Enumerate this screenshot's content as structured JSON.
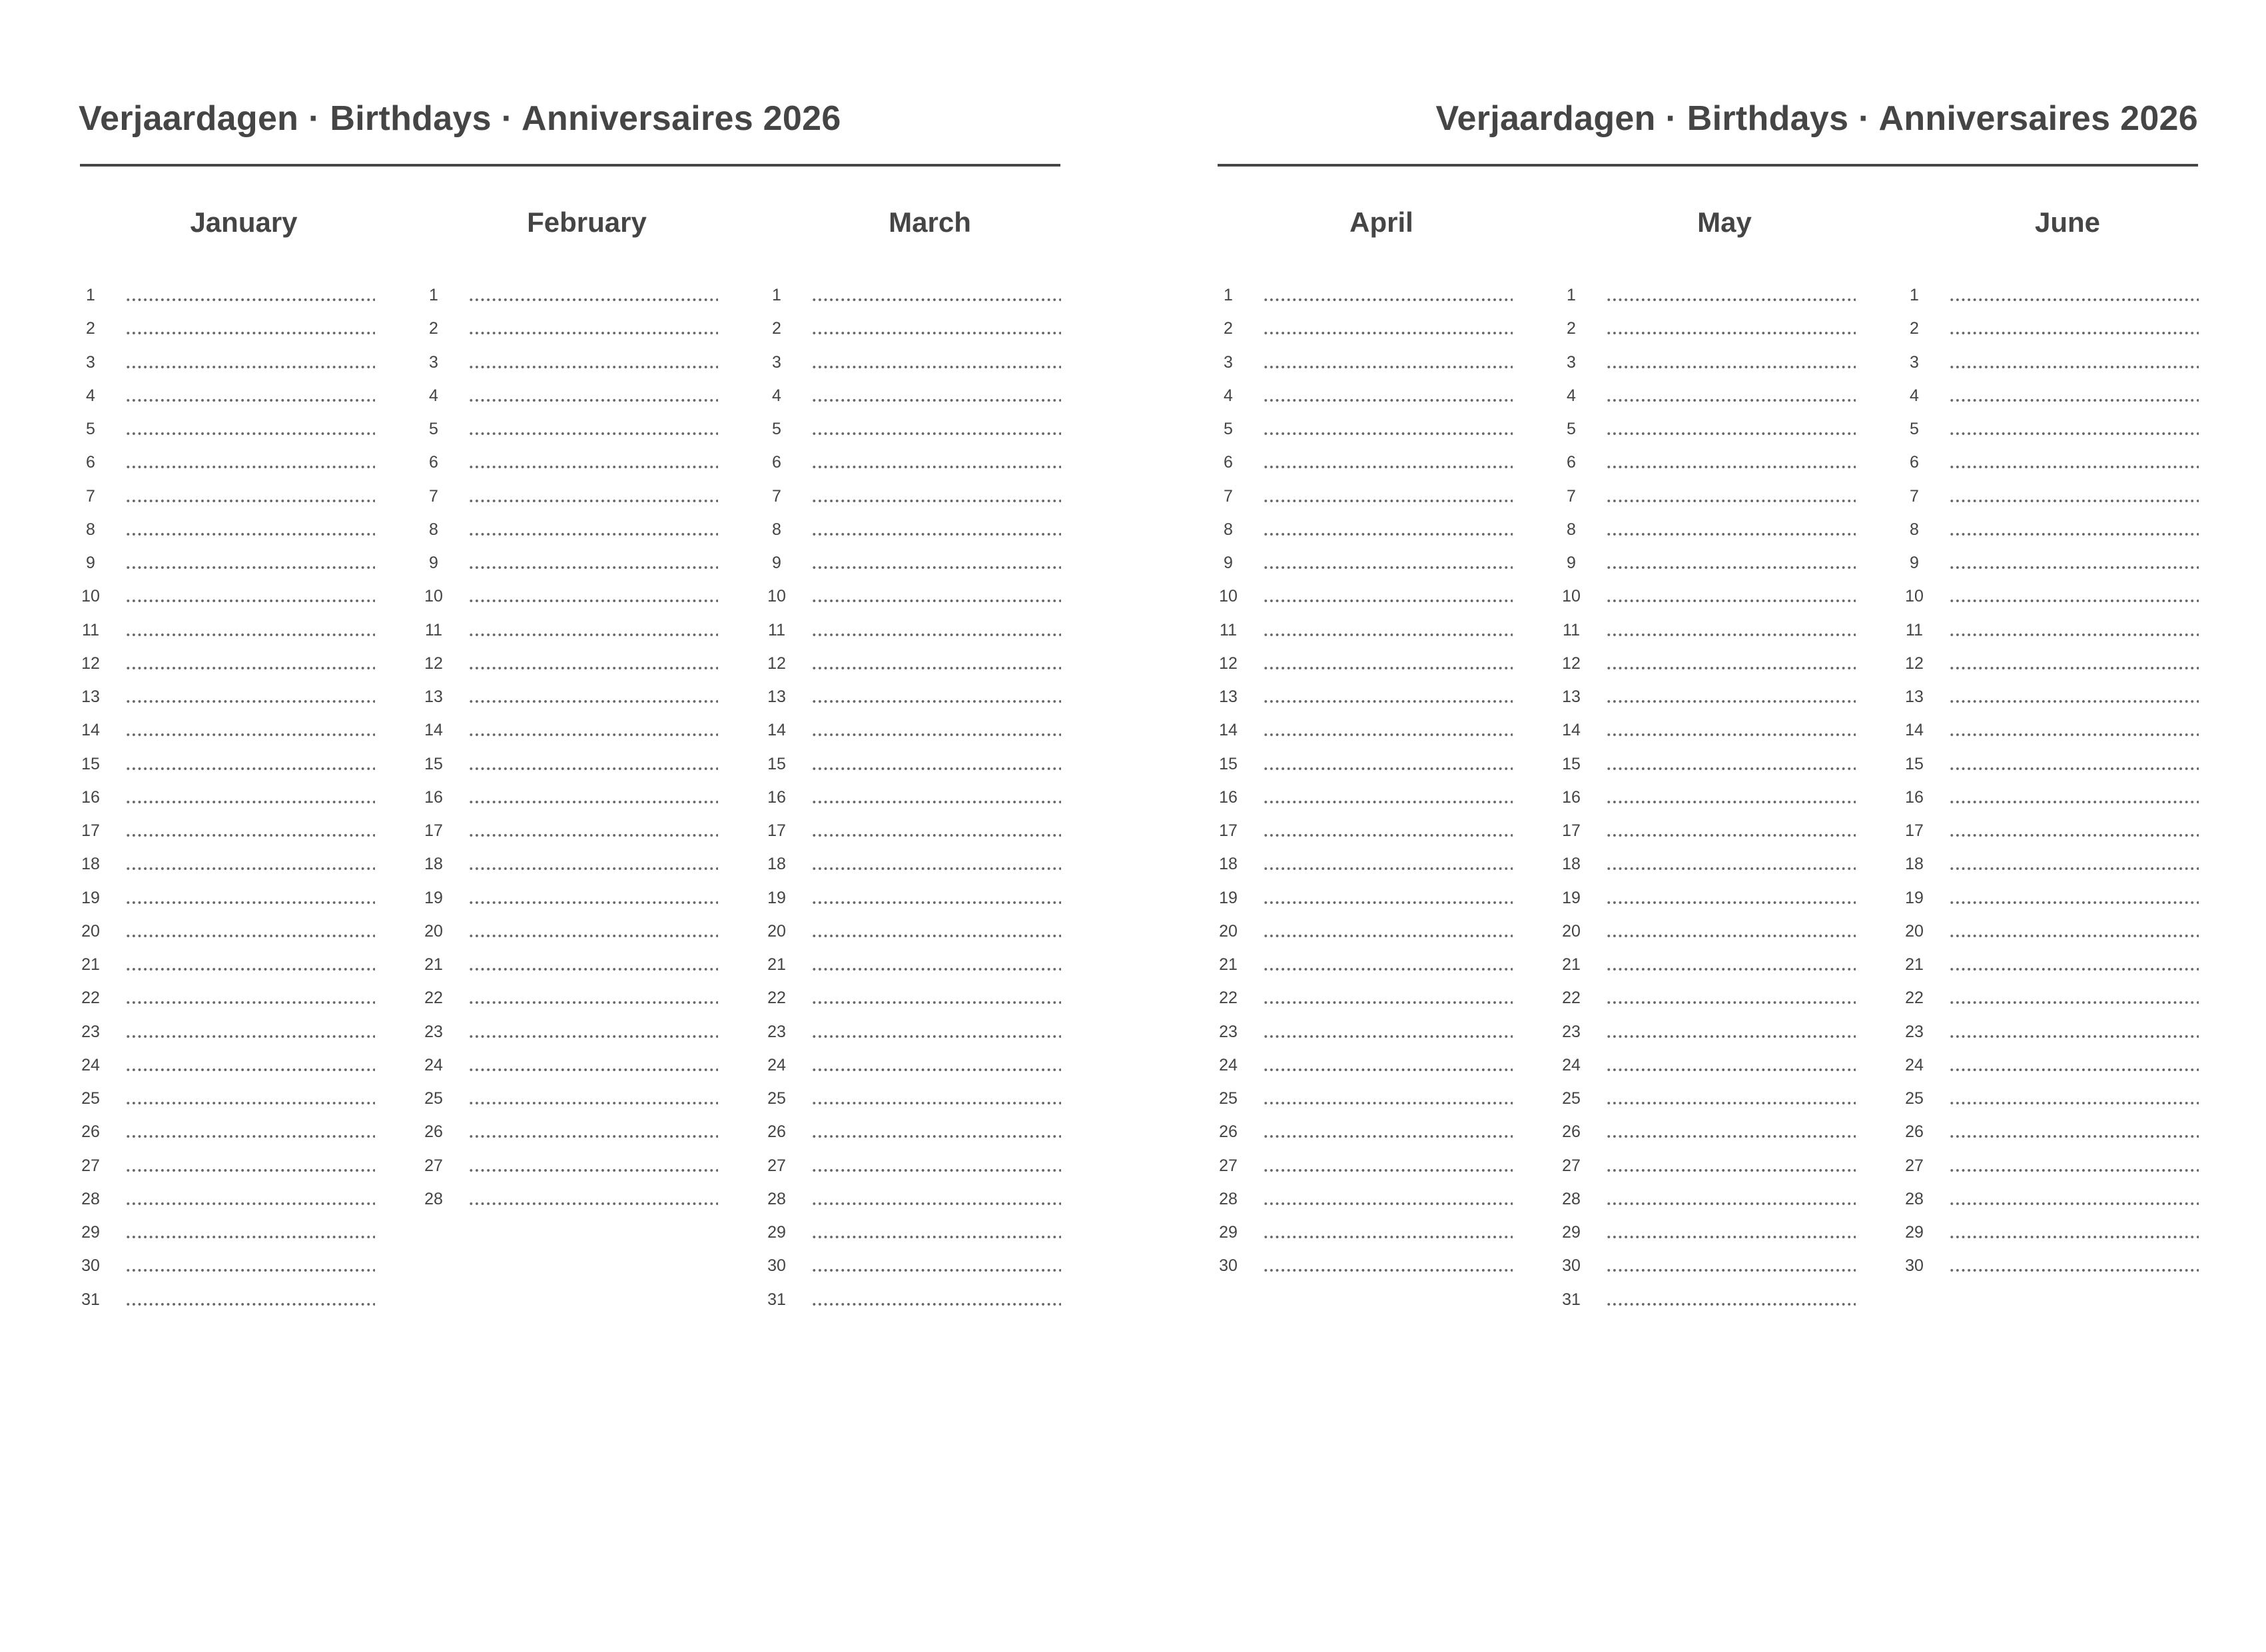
{
  "pages": [
    {
      "title": "Verjaardagen · Birthdays · Anniversaires 2026",
      "months": [
        {
          "name": "January",
          "days": 31
        },
        {
          "name": "February",
          "days": 28
        },
        {
          "name": "March",
          "days": 31
        }
      ]
    },
    {
      "title": "Verjaardagen · Birthdays · Anniversaires 2026",
      "months": [
        {
          "name": "April",
          "days": 30
        },
        {
          "name": "May",
          "days": 31
        },
        {
          "name": "June",
          "days": 30
        }
      ]
    }
  ]
}
